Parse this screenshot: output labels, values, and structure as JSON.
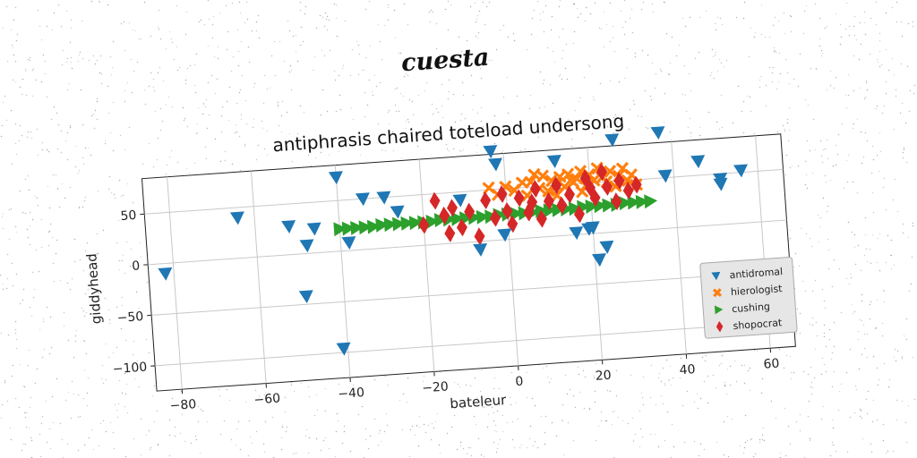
{
  "suptitle": "cuesta",
  "chart_data": {
    "type": "scatter",
    "title": "antiphrasis chaired toteload undersong",
    "xlabel": "bateleur",
    "ylabel": "giddyhead",
    "xlim": [
      -86,
      66
    ],
    "ylim": [
      -125,
      85
    ],
    "xticks": [
      -80,
      -60,
      -40,
      -20,
      0,
      20,
      40,
      60
    ],
    "yticks": [
      -100,
      -50,
      0,
      50
    ],
    "grid": true,
    "legend_position": "lower right",
    "series": [
      {
        "name": "antidromal",
        "marker": "triangle-down",
        "color": "#1f77b4",
        "points": [
          [
            -82,
            -10
          ],
          [
            -64,
            40
          ],
          [
            -52,
            28
          ],
          [
            -49,
            -42
          ],
          [
            -48,
            8
          ],
          [
            -46,
            24
          ],
          [
            -41,
            -96
          ],
          [
            -40,
            73
          ],
          [
            -38,
            8
          ],
          [
            -34,
            50
          ],
          [
            -29,
            50
          ],
          [
            -26,
            35
          ],
          [
            -11,
            42
          ],
          [
            -7,
            -8
          ],
          [
            -3,
            88
          ],
          [
            -2,
            75
          ],
          [
            -1,
            5
          ],
          [
            12,
            74
          ],
          [
            16,
            2
          ],
          [
            19,
            5
          ],
          [
            20,
            6
          ],
          [
            21,
            -26
          ],
          [
            23,
            -14
          ],
          [
            26,
            91
          ],
          [
            37,
            95
          ],
          [
            38,
            52
          ],
          [
            46,
            64
          ],
          [
            51,
            40
          ],
          [
            51,
            45
          ],
          [
            56,
            52
          ]
        ]
      },
      {
        "name": "hierologist",
        "marker": "x",
        "color": "#ff7f0e",
        "points": [
          [
            -4,
            52
          ],
          [
            -2,
            45
          ],
          [
            0,
            52
          ],
          [
            2,
            48
          ],
          [
            4,
            55
          ],
          [
            5,
            42
          ],
          [
            6,
            55
          ],
          [
            8,
            48
          ],
          [
            9,
            60
          ],
          [
            10,
            45
          ],
          [
            11,
            55
          ],
          [
            12,
            50
          ],
          [
            13,
            58
          ],
          [
            14,
            48
          ],
          [
            15,
            60
          ],
          [
            16,
            52
          ],
          [
            17,
            55
          ],
          [
            18,
            62
          ],
          [
            19,
            48
          ],
          [
            20,
            58
          ],
          [
            21,
            52
          ],
          [
            22,
            64
          ],
          [
            23,
            55
          ],
          [
            24,
            50
          ],
          [
            25,
            60
          ],
          [
            26,
            45
          ],
          [
            27,
            55
          ],
          [
            28,
            62
          ],
          [
            29,
            50
          ],
          [
            30,
            55
          ],
          [
            31,
            45
          ],
          [
            18,
            42
          ],
          [
            12,
            40
          ],
          [
            7,
            62
          ]
        ]
      },
      {
        "name": "cushing",
        "marker": "triangle-right",
        "color": "#2ca02c",
        "points": [
          [
            -40,
            22
          ],
          [
            -38,
            22
          ],
          [
            -36,
            22
          ],
          [
            -34,
            22
          ],
          [
            -32,
            22
          ],
          [
            -30,
            23
          ],
          [
            -28,
            23
          ],
          [
            -26,
            23
          ],
          [
            -24,
            23
          ],
          [
            -22,
            23
          ],
          [
            -20,
            23
          ],
          [
            -18,
            23
          ],
          [
            -16,
            24
          ],
          [
            -14,
            24
          ],
          [
            -12,
            24
          ],
          [
            -10,
            24
          ],
          [
            -8,
            24
          ],
          [
            -6,
            24
          ],
          [
            -4,
            24
          ],
          [
            -2,
            25
          ],
          [
            0,
            25
          ],
          [
            2,
            25
          ],
          [
            4,
            25
          ],
          [
            6,
            25
          ],
          [
            8,
            26
          ],
          [
            10,
            26
          ],
          [
            12,
            26
          ],
          [
            14,
            26
          ],
          [
            16,
            26
          ],
          [
            18,
            27
          ],
          [
            20,
            27
          ],
          [
            22,
            27
          ],
          [
            24,
            27
          ],
          [
            26,
            27
          ],
          [
            28,
            28
          ],
          [
            30,
            28
          ],
          [
            32,
            28
          ],
          [
            34,
            28
          ]
        ]
      },
      {
        "name": "shopocrat",
        "marker": "diamond",
        "color": "#d62728",
        "points": [
          [
            -20,
            20
          ],
          [
            -17,
            43
          ],
          [
            -15,
            28
          ],
          [
            -14,
            10
          ],
          [
            -13,
            35
          ],
          [
            -11,
            15
          ],
          [
            -9,
            30
          ],
          [
            -7,
            5
          ],
          [
            -5,
            40
          ],
          [
            -3,
            22
          ],
          [
            -1,
            45
          ],
          [
            0,
            28
          ],
          [
            1,
            15
          ],
          [
            3,
            40
          ],
          [
            5,
            25
          ],
          [
            7,
            48
          ],
          [
            8,
            18
          ],
          [
            10,
            35
          ],
          [
            12,
            50
          ],
          [
            13,
            30
          ],
          [
            15,
            40
          ],
          [
            17,
            20
          ],
          [
            19,
            55
          ],
          [
            21,
            35
          ],
          [
            23,
            60
          ],
          [
            24,
            45
          ],
          [
            26,
            30
          ],
          [
            27,
            50
          ],
          [
            29,
            40
          ],
          [
            31,
            45
          ],
          [
            20,
            45
          ],
          [
            6,
            35
          ]
        ]
      }
    ]
  }
}
